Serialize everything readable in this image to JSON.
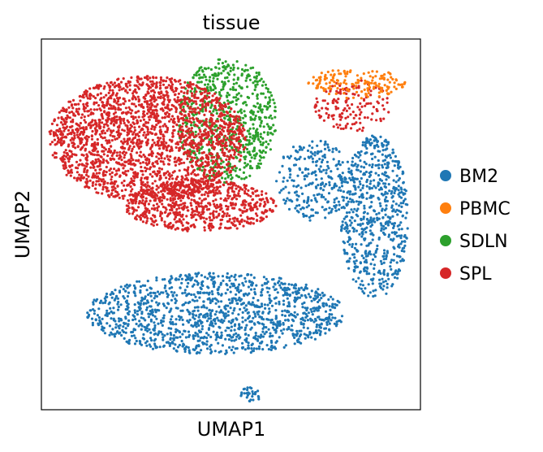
{
  "chart_data": {
    "type": "scatter",
    "title": "tissue",
    "xlabel": "UMAP1",
    "ylabel": "UMAP2",
    "ticks_shown": false,
    "grid": false,
    "legend_position": "right",
    "series": [
      {
        "name": "BM2",
        "color": "#1f77b4",
        "regions": [
          {
            "cx": 0.46,
            "cy": 0.26,
            "rx": 0.34,
            "ry": 0.11,
            "n": 1300
          },
          {
            "cx": 0.88,
            "cy": 0.52,
            "rx": 0.09,
            "ry": 0.22,
            "n": 650
          },
          {
            "cx": 0.72,
            "cy": 0.62,
            "rx": 0.1,
            "ry": 0.11,
            "n": 260
          },
          {
            "cx": 0.55,
            "cy": 0.04,
            "rx": 0.03,
            "ry": 0.02,
            "n": 30
          }
        ]
      },
      {
        "name": "PBMC",
        "color": "#ff7f0e",
        "regions": [
          {
            "cx": 0.83,
            "cy": 0.88,
            "rx": 0.13,
            "ry": 0.04,
            "n": 160
          }
        ]
      },
      {
        "name": "SDLN",
        "color": "#2ca02c",
        "regions": [
          {
            "cx": 0.49,
            "cy": 0.78,
            "rx": 0.13,
            "ry": 0.17,
            "n": 700
          }
        ]
      },
      {
        "name": "SPL",
        "color": "#d62728",
        "regions": [
          {
            "cx": 0.28,
            "cy": 0.73,
            "rx": 0.26,
            "ry": 0.17,
            "n": 2200
          },
          {
            "cx": 0.42,
            "cy": 0.55,
            "rx": 0.2,
            "ry": 0.07,
            "n": 700
          },
          {
            "cx": 0.82,
            "cy": 0.82,
            "rx": 0.1,
            "ry": 0.07,
            "n": 150
          }
        ]
      }
    ]
  },
  "legend": {
    "items": [
      {
        "label": "BM2",
        "color": "#1f77b4"
      },
      {
        "label": "PBMC",
        "color": "#ff7f0e"
      },
      {
        "label": "SDLN",
        "color": "#2ca02c"
      },
      {
        "label": "SPL",
        "color": "#d62728"
      }
    ]
  }
}
